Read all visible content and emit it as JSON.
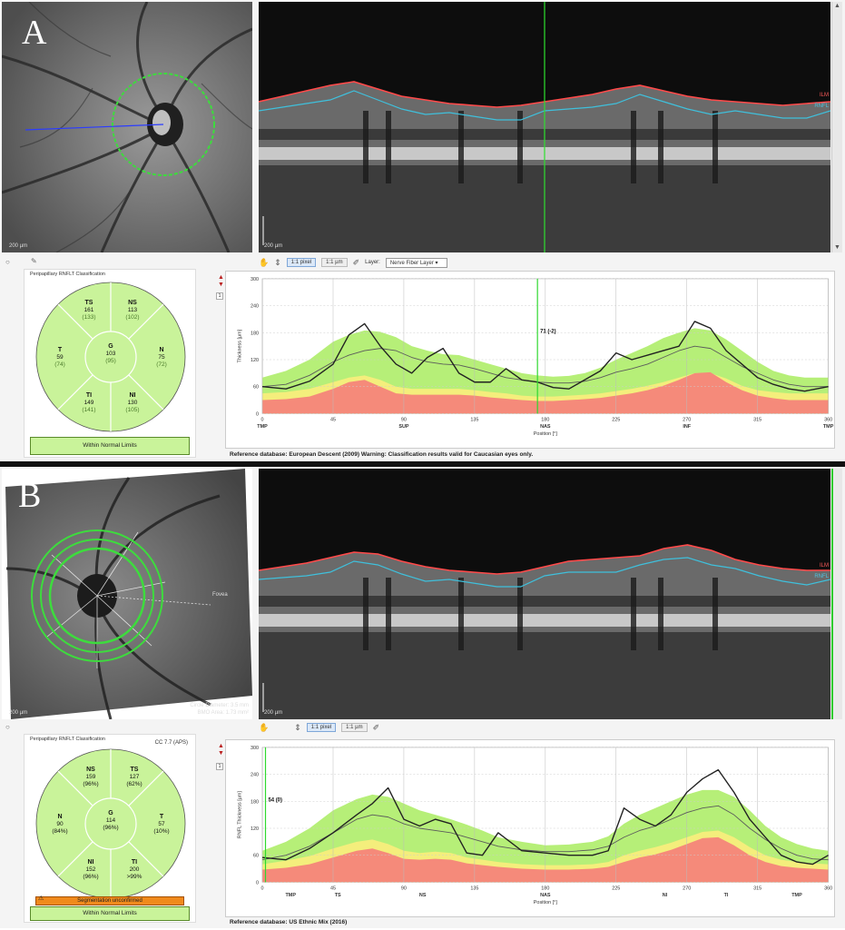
{
  "panels": [
    {
      "letter": "A",
      "fundus_scale": "200 µm",
      "bscan_scale": "200 µm",
      "boundary_labels": {
        "ilm": "ILM",
        "rnfl": "RNFL"
      },
      "toolbar": {
        "btn1": "1:1 pixel",
        "btn2": "1:1 µm",
        "layer_label": "Layer:",
        "layer_value": "Nerve Fiber Layer"
      },
      "classification_title": "Peripapillary RNFLT Classification",
      "cc_label": "",
      "sectors": {
        "TS": {
          "label": "TS",
          "value": "161",
          "normal": "(133)"
        },
        "NS": {
          "label": "NS",
          "value": "113",
          "normal": "(102)"
        },
        "T": {
          "label": "T",
          "value": "59",
          "normal": "(74)"
        },
        "G": {
          "label": "G",
          "value": "103",
          "normal": "(95)"
        },
        "N": {
          "label": "N",
          "value": "75",
          "normal": "(72)"
        },
        "TI": {
          "label": "TI",
          "value": "149",
          "normal": "(141)"
        },
        "NI": {
          "label": "NI",
          "value": "130",
          "normal": "(105)"
        }
      },
      "status": "Within Normal Limits",
      "segmentation_warning": "",
      "side_box": "1",
      "reference": "Reference database: European Descent (2009)   Warning: Classification results valid for Caucasian eyes only.",
      "chart_data": {
        "type": "line",
        "ylabel": "Thickness [µm]",
        "xlabel": "Position [°]",
        "xlim": [
          0,
          360
        ],
        "ylim": [
          0,
          300
        ],
        "x_ticks": [
          0,
          45,
          90,
          135,
          180,
          225,
          270,
          315,
          360
        ],
        "y_ticks": [
          0,
          60,
          120,
          180,
          240,
          300
        ],
        "sector_labels": [
          {
            "x": 0,
            "label": "TMP"
          },
          {
            "x": 90,
            "label": "SUP"
          },
          {
            "x": 180,
            "label": "NAS"
          },
          {
            "x": 270,
            "label": "INF"
          },
          {
            "x": 360,
            "label": "TMP"
          }
        ],
        "cursor": {
          "x": 175,
          "label": "71 (-2)"
        },
        "x": [
          0,
          15,
          30,
          45,
          55,
          65,
          75,
          85,
          95,
          105,
          115,
          125,
          135,
          145,
          155,
          165,
          175,
          185,
          195,
          205,
          215,
          225,
          235,
          245,
          255,
          265,
          275,
          285,
          295,
          305,
          315,
          325,
          335,
          345,
          360
        ],
        "patient": [
          60,
          55,
          72,
          110,
          175,
          200,
          150,
          110,
          90,
          125,
          145,
          90,
          70,
          70,
          100,
          75,
          70,
          58,
          55,
          75,
          95,
          135,
          120,
          130,
          140,
          150,
          205,
          190,
          140,
          110,
          80,
          65,
          55,
          50,
          60
        ],
        "mean": [
          60,
          65,
          85,
          115,
          130,
          140,
          145,
          140,
          125,
          115,
          110,
          108,
          100,
          90,
          80,
          75,
          70,
          68,
          68,
          72,
          80,
          92,
          100,
          110,
          125,
          140,
          150,
          145,
          125,
          105,
          90,
          75,
          65,
          60,
          60
        ],
        "green_upper": [
          80,
          95,
          120,
          160,
          175,
          185,
          182,
          170,
          150,
          140,
          132,
          130,
          120,
          110,
          100,
          90,
          85,
          82,
          84,
          90,
          102,
          120,
          135,
          150,
          168,
          180,
          190,
          185,
          165,
          140,
          115,
          95,
          85,
          80,
          80
        ],
        "yellow_upper": [
          45,
          48,
          55,
          70,
          80,
          85,
          75,
          60,
          55,
          55,
          55,
          55,
          52,
          48,
          45,
          40,
          38,
          38,
          40,
          42,
          45,
          50,
          55,
          62,
          70,
          80,
          90,
          90,
          78,
          62,
          52,
          48,
          45,
          45,
          45
        ],
        "red_upper": [
          30,
          32,
          38,
          55,
          70,
          75,
          60,
          45,
          42,
          42,
          42,
          42,
          40,
          36,
          33,
          30,
          28,
          28,
          30,
          32,
          35,
          40,
          45,
          52,
          62,
          75,
          90,
          92,
          70,
          52,
          40,
          34,
          30,
          30,
          30
        ]
      }
    },
    {
      "letter": "B",
      "fundus_scale": "200 µm",
      "bscan_scale": "200 µm",
      "fundus_info": [
        "Circle Diameter: 3.5 mm",
        "BMO Area: 1.73 mm²"
      ],
      "fovea_label": "Fovea",
      "boundary_labels": {
        "ilm": "ILM",
        "rnfl": "RNFL"
      },
      "toolbar": {
        "btn1": "1:1 pixel",
        "btn2": "1:1 µm",
        "layer_label": "",
        "layer_value": ""
      },
      "classification_title": "Peripapillary RNFLT Classification",
      "cc_label": "CC 7.7 (APS)",
      "sectors": {
        "TS": {
          "label": "TS",
          "value": "127",
          "normal": "(62%)"
        },
        "NS": {
          "label": "NS",
          "value": "159",
          "normal": "(96%)"
        },
        "T": {
          "label": "T",
          "value": "57",
          "normal": "(10%)"
        },
        "G": {
          "label": "G",
          "value": "114",
          "normal": "(96%)"
        },
        "N": {
          "label": "N",
          "value": "90",
          "normal": "(84%)"
        },
        "TI": {
          "label": "TI",
          "value": "200",
          "normal": ">99%"
        },
        "NI": {
          "label": "NI",
          "value": "152",
          "normal": "(96%)"
        }
      },
      "status": "Within Normal Limits",
      "segmentation_warning": "Segmentation unconfirmed",
      "side_box": "1",
      "reference": "Reference database: US Ethnic Mix (2016)",
      "chart_data": {
        "type": "line",
        "ylabel": "RNFL Thickness [µm]",
        "xlabel": "Position [°]",
        "xlim": [
          0,
          360
        ],
        "ylim": [
          0,
          300
        ],
        "x_ticks": [
          0,
          45,
          90,
          135,
          180,
          225,
          270,
          315,
          360
        ],
        "y_ticks": [
          0,
          60,
          120,
          180,
          240,
          300
        ],
        "sector_labels": [
          {
            "x": 18,
            "label": "TMP"
          },
          {
            "x": 48,
            "label": "TS"
          },
          {
            "x": 102,
            "label": "NS"
          },
          {
            "x": 180,
            "label": "NAS"
          },
          {
            "x": 256,
            "label": "NI"
          },
          {
            "x": 295,
            "label": "TI"
          },
          {
            "x": 340,
            "label": "TMP"
          }
        ],
        "cursor": {
          "x": 2,
          "label": "54 (0)"
        },
        "x": [
          0,
          15,
          30,
          45,
          60,
          70,
          80,
          90,
          100,
          110,
          120,
          130,
          140,
          150,
          165,
          180,
          195,
          210,
          220,
          230,
          240,
          250,
          260,
          270,
          280,
          290,
          300,
          310,
          320,
          330,
          340,
          350,
          360
        ],
        "patient": [
          55,
          50,
          75,
          110,
          150,
          175,
          210,
          140,
          125,
          140,
          130,
          65,
          60,
          110,
          70,
          65,
          60,
          60,
          70,
          165,
          140,
          125,
          150,
          200,
          230,
          250,
          200,
          140,
          100,
          60,
          45,
          40,
          60
        ],
        "mean": [
          50,
          60,
          80,
          110,
          140,
          150,
          145,
          130,
          120,
          115,
          110,
          100,
          90,
          80,
          72,
          68,
          68,
          72,
          80,
          100,
          115,
          125,
          140,
          155,
          165,
          170,
          150,
          120,
          95,
          75,
          60,
          52,
          50
        ],
        "green_upper": [
          70,
          90,
          120,
          160,
          185,
          195,
          190,
          175,
          160,
          150,
          140,
          128,
          115,
          100,
          90,
          82,
          84,
          90,
          102,
          130,
          150,
          165,
          180,
          195,
          205,
          205,
          190,
          160,
          125,
          100,
          85,
          75,
          70
        ],
        "yellow_upper": [
          40,
          48,
          58,
          75,
          90,
          95,
          85,
          70,
          65,
          68,
          65,
          55,
          50,
          45,
          40,
          38,
          38,
          40,
          45,
          60,
          70,
          78,
          88,
          100,
          112,
          115,
          100,
          78,
          60,
          50,
          45,
          42,
          40
        ],
        "red_upper": [
          28,
          32,
          40,
          55,
          70,
          75,
          65,
          52,
          50,
          52,
          50,
          42,
          38,
          34,
          30,
          28,
          28,
          30,
          34,
          45,
          55,
          62,
          72,
          85,
          98,
          100,
          82,
          60,
          45,
          36,
          32,
          30,
          28
        ]
      }
    }
  ]
}
